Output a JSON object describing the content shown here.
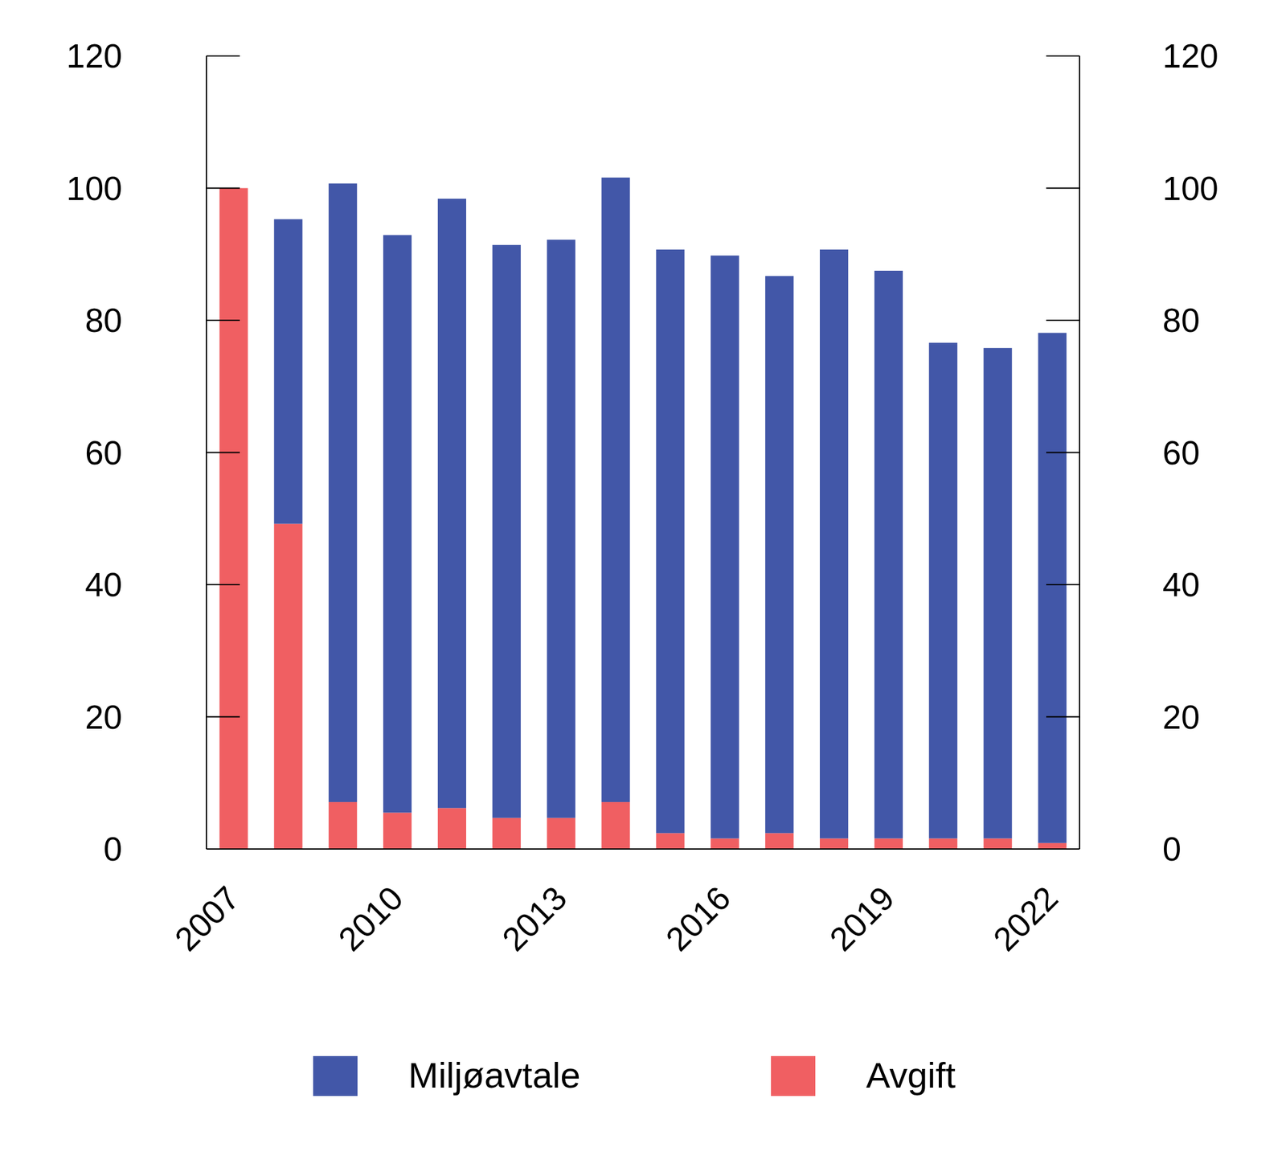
{
  "chart_data": {
    "type": "bar",
    "stacked": true,
    "legend": "bottom",
    "categories": [
      "2007",
      null,
      null,
      "2010",
      null,
      null,
      "2013",
      null,
      null,
      "2016",
      null,
      null,
      "2019",
      null,
      null,
      "2022"
    ],
    "series": [
      {
        "name": "Miljøavtale",
        "color": "#4257a8",
        "values": [
          0,
          46.1,
          93.6,
          87.4,
          92.2,
          86.7,
          87.5,
          94.5,
          88.3,
          88.2,
          84.3,
          89.1,
          85.9,
          75.0,
          74.2,
          77.2
        ]
      },
      {
        "name": "Avgift",
        "color": "#f05f62",
        "values": [
          100,
          49.2,
          7.1,
          5.5,
          6.2,
          4.7,
          4.7,
          7.1,
          2.4,
          1.6,
          2.4,
          1.6,
          1.6,
          1.6,
          1.6,
          0.9
        ]
      }
    ],
    "ylim": [
      0,
      120
    ],
    "yticks": [
      0,
      20,
      40,
      60,
      80,
      100,
      120
    ],
    "y2lim": [
      0,
      120
    ],
    "y2ticks": [
      0,
      20,
      40,
      60,
      80,
      100,
      120
    ]
  }
}
